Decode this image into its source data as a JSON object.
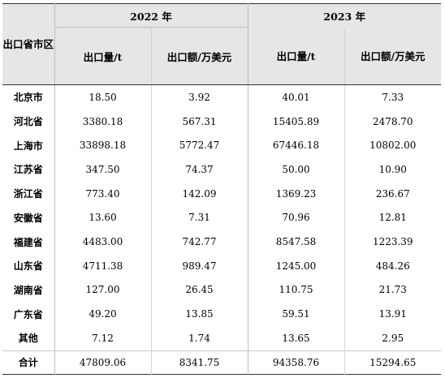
{
  "header": {
    "province_label": "出口省市区",
    "year_2022": "2022 年",
    "year_2023": "2023 年",
    "volume_label": "出口量/t",
    "value_label": "出口额/万美元"
  },
  "rows": [
    {
      "province": "北京市",
      "v2022": "18.50",
      "amt2022": "3.92",
      "v2023": "40.01",
      "amt2023": "7.33"
    },
    {
      "province": "河北省",
      "v2022": "3380.18",
      "amt2022": "567.31",
      "v2023": "15405.89",
      "amt2023": "2478.70"
    },
    {
      "province": "上海市",
      "v2022": "33898.18",
      "amt2022": "5772.47",
      "v2023": "67446.18",
      "amt2023": "10802.00"
    },
    {
      "province": "江苏省",
      "v2022": "347.50",
      "amt2022": "74.37",
      "v2023": "50.00",
      "amt2023": "10.90"
    },
    {
      "province": "浙江省",
      "v2022": "773.40",
      "amt2022": "142.09",
      "v2023": "1369.23",
      "amt2023": "236.67"
    },
    {
      "province": "安徽省",
      "v2022": "13.60",
      "amt2022": "7.31",
      "v2023": "70.96",
      "amt2023": "12.81"
    },
    {
      "province": "福建省",
      "v2022": "4483.00",
      "amt2022": "742.77",
      "v2023": "8547.58",
      "amt2023": "1223.39"
    },
    {
      "province": "山东省",
      "v2022": "4711.38",
      "amt2022": "989.47",
      "v2023": "1245.00",
      "amt2023": "484.26"
    },
    {
      "province": "湖南省",
      "v2022": "127.00",
      "amt2022": "26.45",
      "v2023": "110.75",
      "amt2023": "21.73"
    },
    {
      "province": "广东省",
      "v2022": "49.20",
      "amt2022": "13.85",
      "v2023": "59.51",
      "amt2023": "13.91"
    },
    {
      "province": "其他",
      "v2022": "7.12",
      "amt2022": "1.74",
      "v2023": "13.65",
      "amt2023": "2.95"
    }
  ],
  "total": {
    "province": "合计",
    "v2022": "47809.06",
    "amt2022": "8341.75",
    "v2023": "94358.76",
    "amt2023": "15294.65"
  }
}
